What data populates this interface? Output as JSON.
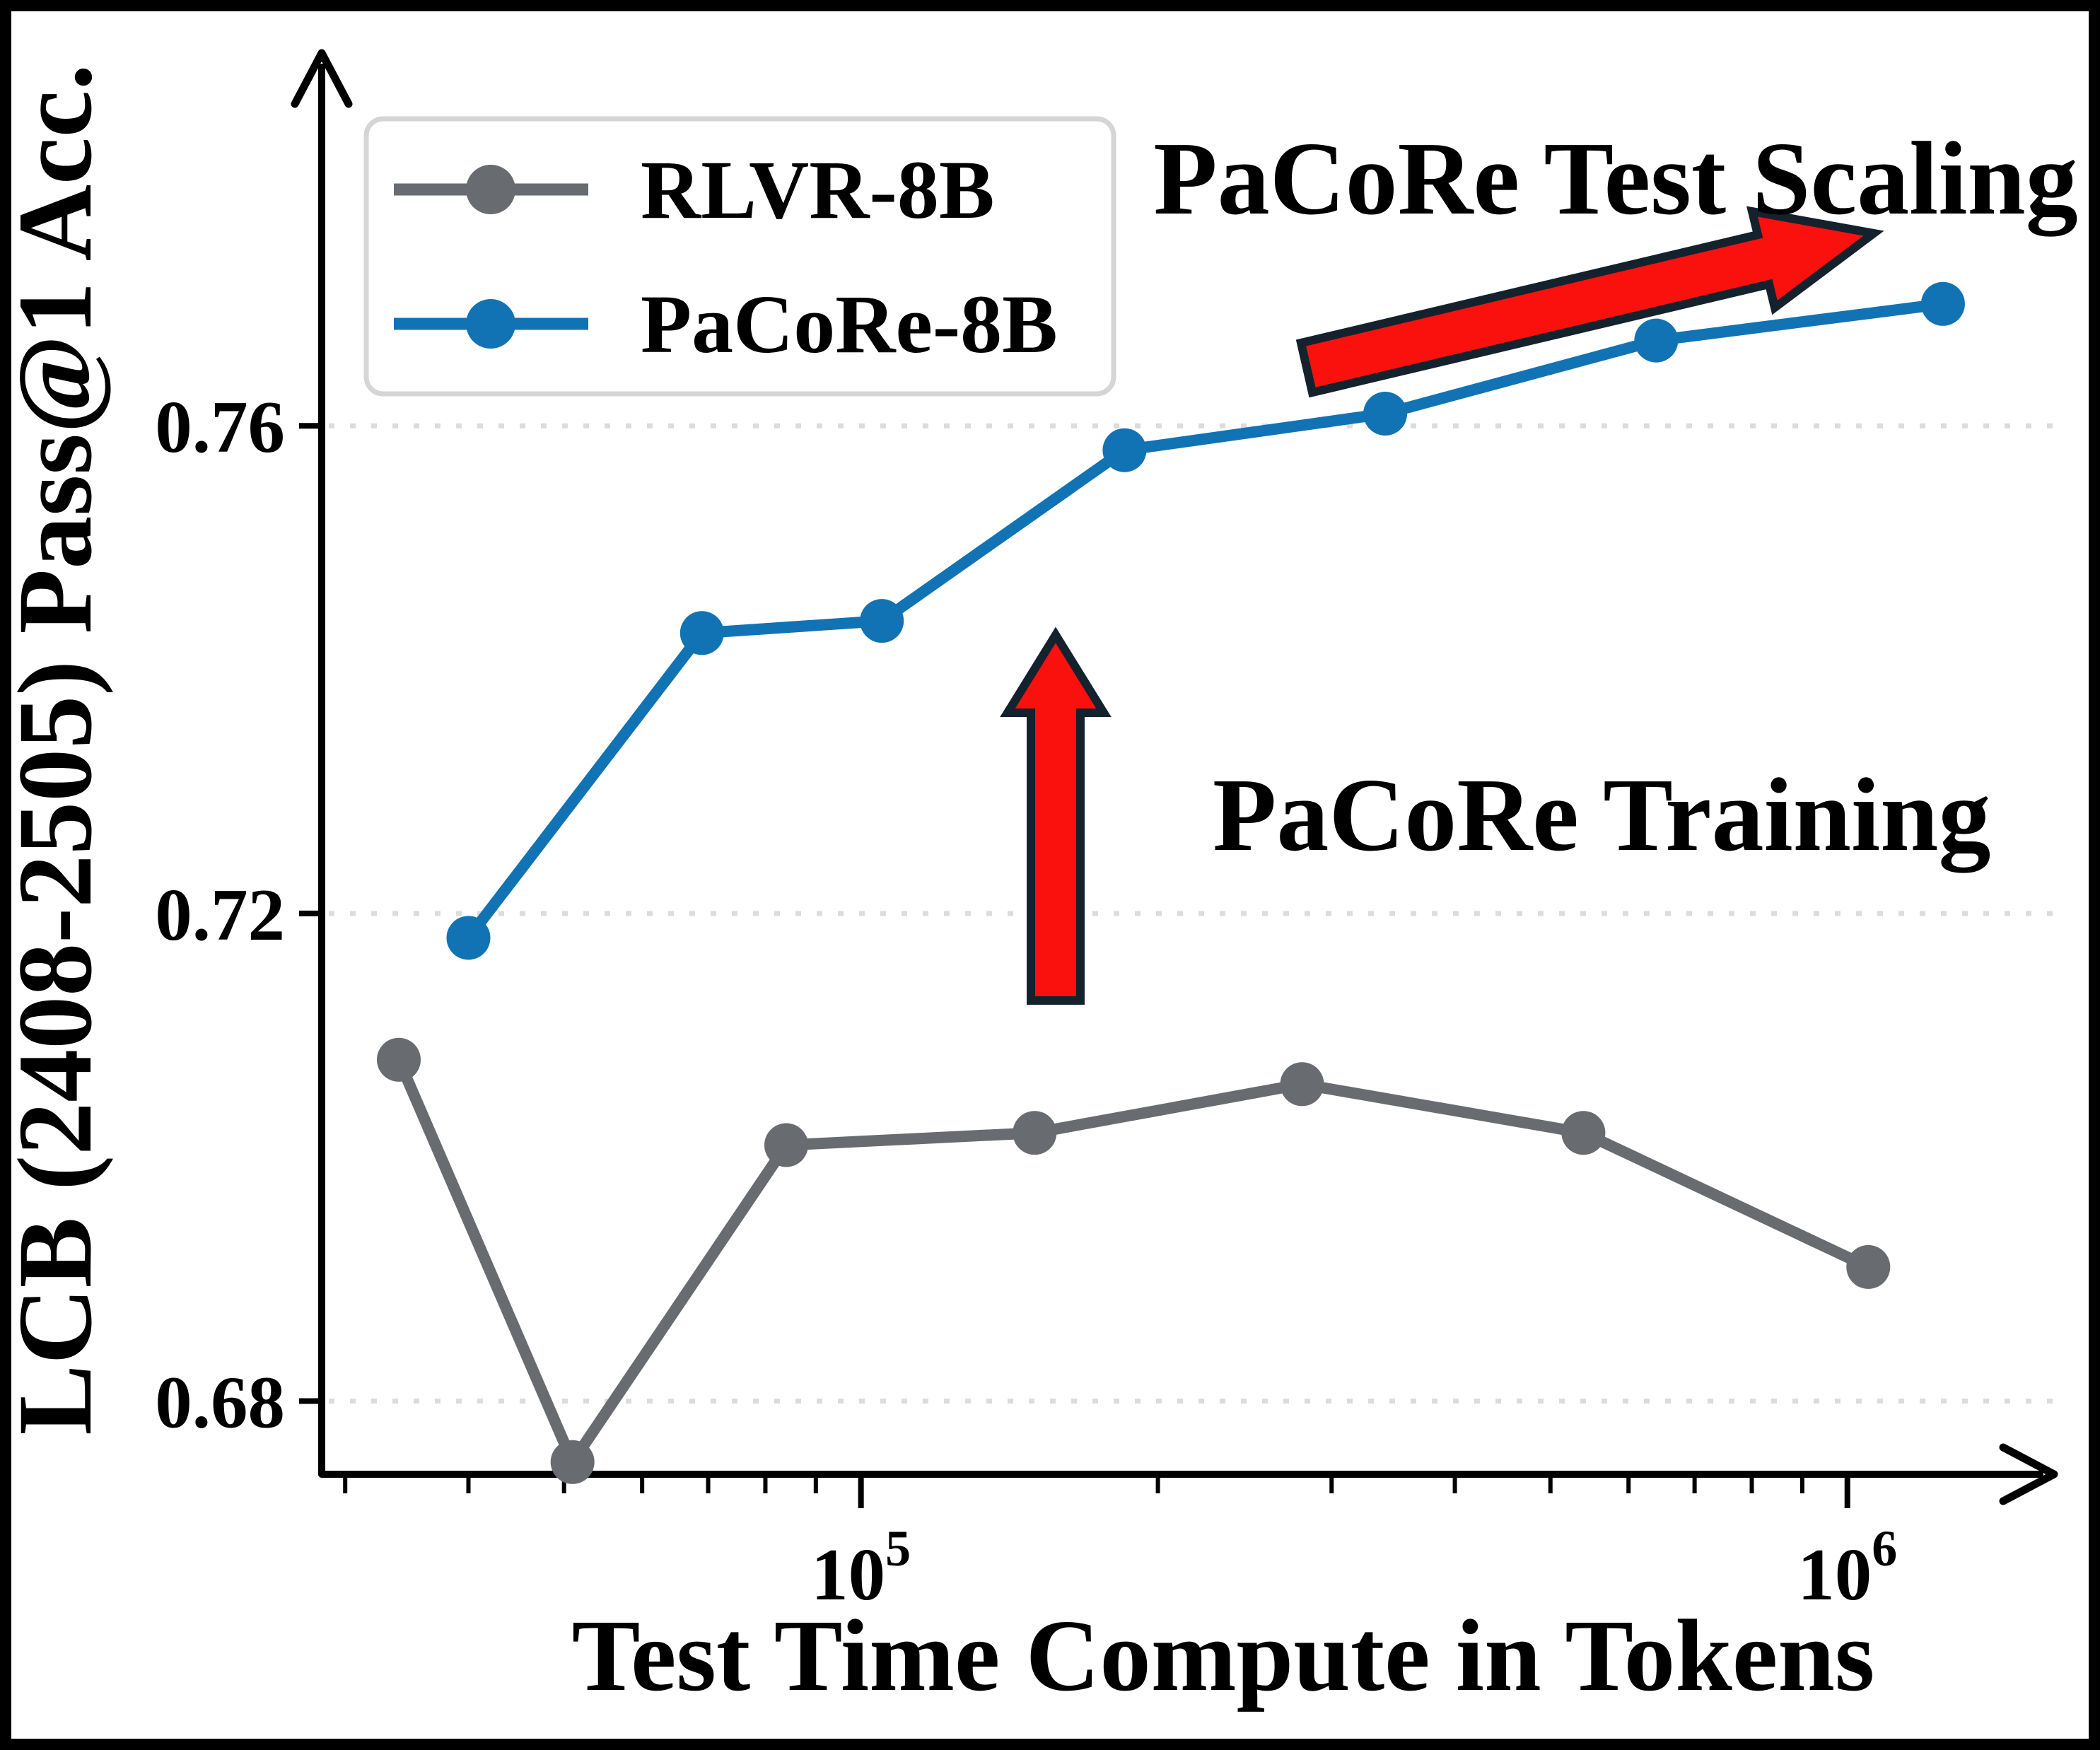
{
  "figure": {
    "x_axis_title": "Test Time Compute in Tokens",
    "y_axis_title": "LCB (2408-2505) Pass@1 Acc."
  },
  "legend": {
    "items": [
      {
        "label": "RLVR-8B",
        "color": "#686b70"
      },
      {
        "label": "PaCoRe-8B",
        "color": "#1173b4"
      }
    ]
  },
  "annotations": {
    "test_scaling": "PaCoRe Test Scaling",
    "training": "PaCoRe Training",
    "text_color": "#fa100d",
    "arrow_fill": "#fa100d",
    "arrow_outline": "#14222e"
  },
  "chart_data": {
    "type": "line",
    "title": "",
    "xlabel": "Test Time Compute in Tokens",
    "ylabel": "LCB (2408-2505) Pass@1 Acc.",
    "x_scale": "log",
    "xlim": [
      28400,
      1620000
    ],
    "ylim": [
      0.674,
      0.79
    ],
    "grid": "horizontal-dotted",
    "legend_position": "upper-left",
    "x_ticks": [
      {
        "base": "10",
        "exp": "5",
        "value": 100000
      },
      {
        "base": "10",
        "exp": "6",
        "value": 1000000
      }
    ],
    "y_ticks": [
      {
        "label": "0.68",
        "value": 0.68
      },
      {
        "label": "0.72",
        "value": 0.72
      },
      {
        "label": "0.76",
        "value": 0.76
      }
    ],
    "series": [
      {
        "name": "RLVR-8B",
        "color": "#686b70",
        "x": [
          34000,
          51000,
          84000,
          150000,
          280000,
          540000,
          1050000
        ],
        "y": [
          0.708,
          0.675,
          0.701,
          0.702,
          0.706,
          0.702,
          0.691
        ]
      },
      {
        "name": "PaCoRe-8B",
        "color": "#1173b4",
        "x": [
          40000,
          69000,
          105000,
          185000,
          340000,
          640000,
          1250000
        ],
        "y": [
          0.718,
          0.743,
          0.744,
          0.758,
          0.761,
          0.767,
          0.77
        ]
      }
    ]
  }
}
